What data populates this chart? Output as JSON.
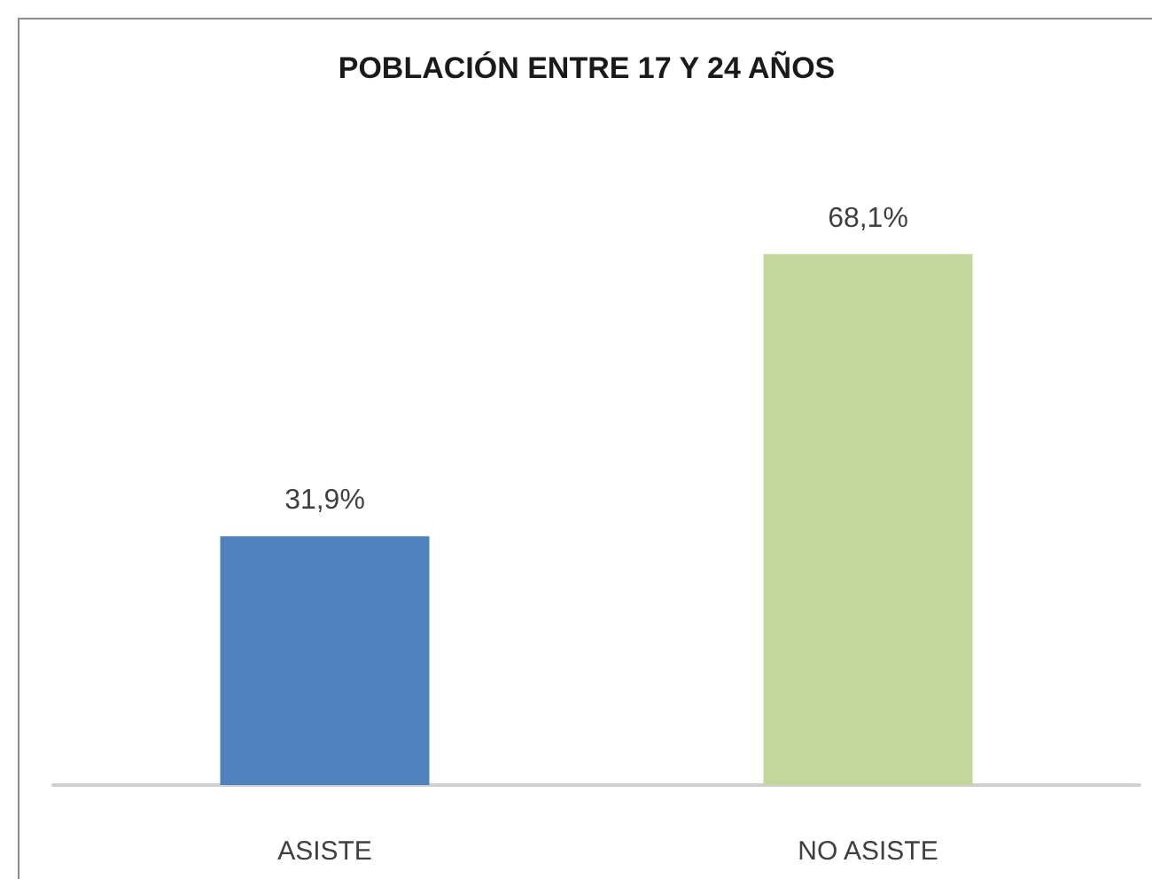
{
  "chart_data": {
    "type": "bar",
    "title": "POBLACIÓN ENTRE 17 Y 24 AÑOS",
    "categories": [
      "ASISTE",
      "NO ASISTE"
    ],
    "values": [
      31.9,
      68.1
    ],
    "colors": [
      "#4f81bd",
      "#c3d69b"
    ],
    "value_labels": [
      "31,9%",
      "68,1%"
    ],
    "tick_labels": "x"
  }
}
